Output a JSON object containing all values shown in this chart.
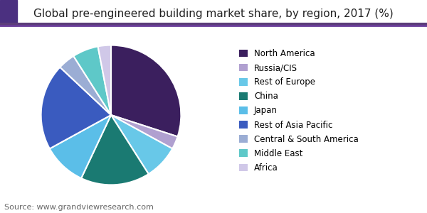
{
  "title": "Global pre-engineered building market share, by region, 2017 (%)",
  "source": "Source: www.grandviewresearch.com",
  "labels": [
    "North America",
    "Russia/CIS",
    "Rest of Europe",
    "China",
    "Japan",
    "Rest of Asia Pacific",
    "Central & South America",
    "Middle East",
    "Africa"
  ],
  "values": [
    30,
    3,
    8,
    16,
    10,
    20,
    4,
    6,
    3
  ],
  "colors": [
    "#3b1f5e",
    "#b0a0d0",
    "#68c8e8",
    "#1a7a72",
    "#5bbee8",
    "#3a5bbf",
    "#9badd4",
    "#5ec8c8",
    "#d0c8e8"
  ],
  "start_angle": 90,
  "title_fontsize": 11,
  "legend_fontsize": 8.5,
  "source_fontsize": 8,
  "figsize": [
    6.0,
    3.0
  ],
  "dpi": 100,
  "header_bar_color": "#5c3d7a",
  "header_bar_color2": "#4b3080"
}
